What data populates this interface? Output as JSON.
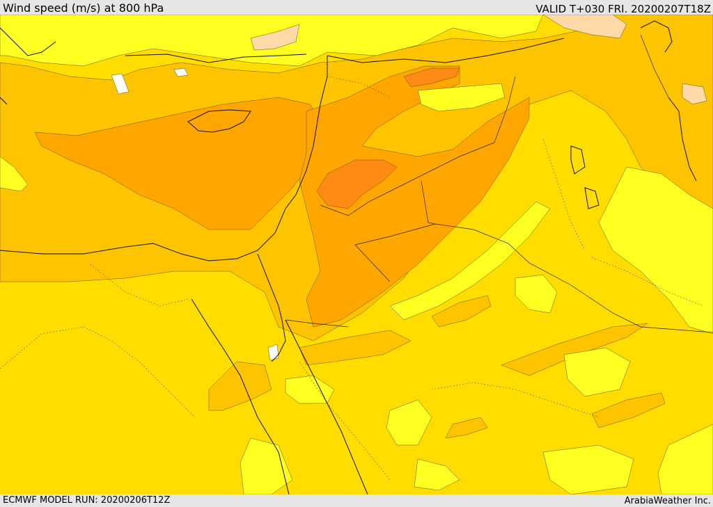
{
  "header": {
    "title": "Wind speed (m/s) at 800 hPa",
    "valid": "VALID T+030 FRI. 20200207T18Z"
  },
  "footer": {
    "model_run": "ECMWF MODEL RUN: 20200206T12Z",
    "provider": "ArabiaWeather Inc."
  },
  "palette": {
    "lt_yellow": "#ffff22",
    "yellow": "#ffdd00",
    "gold": "#ffc400",
    "amber": "#ffa600",
    "orange": "#ff8a14",
    "peach": "#ffd9a8",
    "white": "#ffffff"
  }
}
